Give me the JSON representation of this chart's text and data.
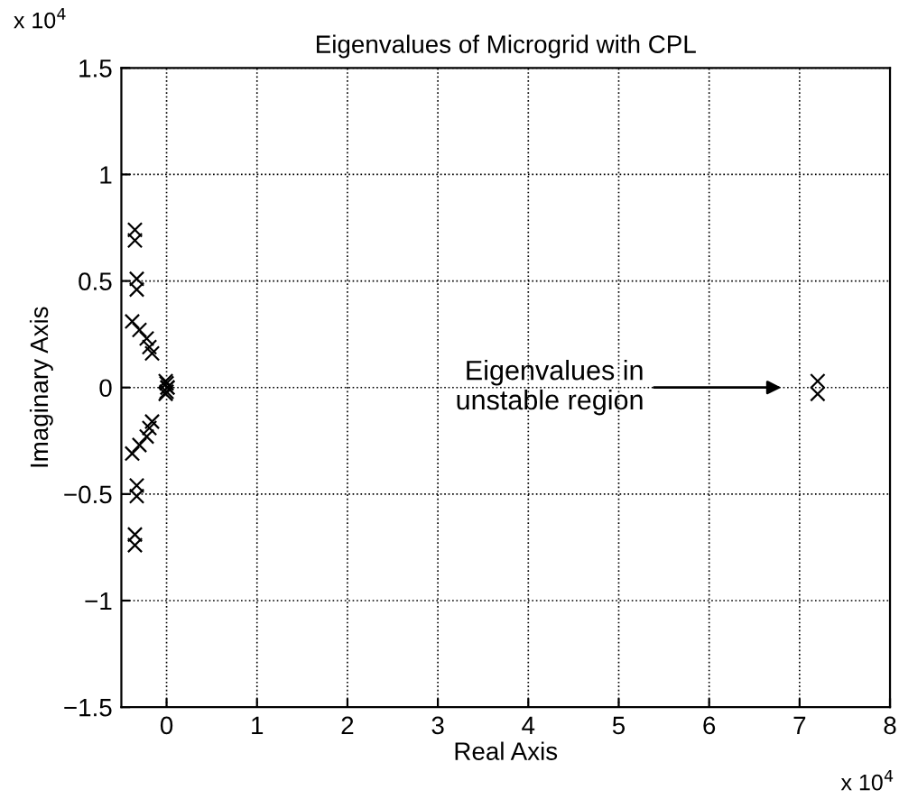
{
  "chart_data": {
    "type": "scatter",
    "title": "Eigenvalues of Microgrid with CPL",
    "xlabel": "Real Axis",
    "ylabel": "Imaginary Axis",
    "x": [
      -0.35,
      -0.35,
      -0.33,
      -0.33,
      -0.38,
      -0.3,
      -0.22,
      -0.19,
      -0.16,
      -0.35,
      -0.35,
      -0.33,
      -0.33,
      -0.38,
      -0.3,
      -0.22,
      -0.19,
      -0.16,
      -0.01,
      0,
      0.01,
      -0.01,
      0,
      0.01,
      7.2,
      7.2
    ],
    "values": [
      0.74,
      0.69,
      0.51,
      0.46,
      0.31,
      0.27,
      0.23,
      0.19,
      0.16,
      -0.74,
      -0.69,
      -0.51,
      -0.46,
      -0.31,
      -0.27,
      -0.23,
      -0.19,
      -0.16,
      0.03,
      0.02,
      0,
      -0.03,
      -0.02,
      0,
      0.03,
      -0.03
    ],
    "color": "#000000",
    "marker": "cross",
    "grid": true,
    "xlim": [
      -0.5,
      8
    ],
    "ylim": [
      -1.5,
      1.5
    ],
    "xticks": [
      0,
      1,
      2,
      3,
      4,
      5,
      6,
      7,
      8
    ],
    "yticks": [
      {
        "value": -1.5,
        "label": "−1.5"
      },
      {
        "value": -1,
        "label": "−1"
      },
      {
        "value": -0.5,
        "label": "−0.5"
      },
      0,
      0.5,
      1,
      1.5
    ],
    "annotations": [
      "Eigenvalues in\nunstable region",
      "x 10$^{4}$",
      "x 10$^{4}$"
    ]
  }
}
